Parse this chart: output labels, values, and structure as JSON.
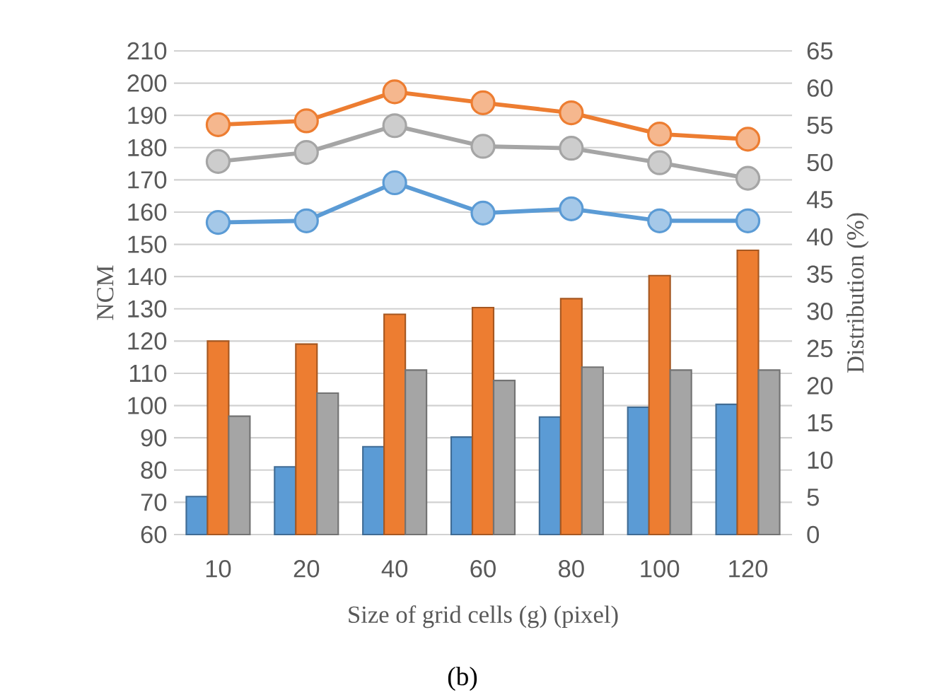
{
  "chart_data": {
    "type": "bar",
    "xlabel": "Size of grid cells (g) (pixel)",
    "ylabel": "NCM",
    "y2label": "Distribution (%)",
    "categories": [
      "10",
      "20",
      "40",
      "60",
      "80",
      "100",
      "120"
    ],
    "ylim": [
      60,
      210
    ],
    "yticks": [
      60,
      70,
      80,
      90,
      100,
      110,
      120,
      130,
      140,
      150,
      160,
      170,
      180,
      190,
      200,
      210
    ],
    "y2lim": [
      0,
      65
    ],
    "y2ticks": [
      0,
      5,
      10,
      15,
      20,
      25,
      30,
      35,
      40,
      45,
      50,
      55,
      60,
      65
    ],
    "grid": "y",
    "marker": "circle",
    "series": [
      {
        "axis": "y2",
        "color": "#5b9bd5",
        "values": [
          5.1,
          9.1,
          11.8,
          13.1,
          15.8,
          17.1,
          17.5
        ]
      },
      {
        "axis": "y2",
        "color": "#ed7d31",
        "values": [
          26.0,
          25.6,
          29.6,
          30.5,
          31.7,
          34.8,
          38.2
        ]
      },
      {
        "axis": "y2",
        "color": "#a5a5a5",
        "values": [
          15.9,
          19.0,
          22.1,
          20.7,
          22.5,
          22.1,
          22.1
        ]
      },
      {
        "type": "line",
        "axis": "y",
        "color": "#ed7d31",
        "values": [
          187.1,
          188.3,
          197.3,
          193.9,
          190.8,
          184.2,
          182.6
        ]
      },
      {
        "type": "line",
        "axis": "y",
        "color": "#a5a5a5",
        "values": [
          175.7,
          178.5,
          186.8,
          180.4,
          179.8,
          175.3,
          170.5
        ]
      },
      {
        "type": "line",
        "axis": "y",
        "color": "#5b9bd5",
        "values": [
          156.8,
          157.3,
          169.1,
          159.7,
          161.0,
          157.3,
          157.3
        ]
      }
    ],
    "annotations": [
      "(b)"
    ]
  }
}
